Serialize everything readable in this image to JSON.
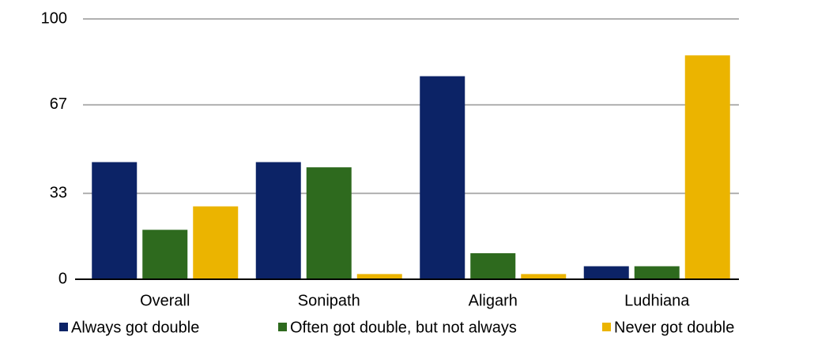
{
  "chart_data": {
    "type": "bar",
    "categories": [
      "Overall",
      "Sonipath",
      "Aligarh",
      "Ludhiana"
    ],
    "series": [
      {
        "name": "Always got double",
        "color": "#0c2366",
        "values": [
          45,
          45,
          78,
          5
        ]
      },
      {
        "name": "Often got double, but not always",
        "color": "#2e6a1e",
        "values": [
          19,
          43,
          10,
          5
        ]
      },
      {
        "name": "Never got double",
        "color": "#ebb400",
        "values": [
          28,
          2,
          2,
          86
        ]
      }
    ],
    "ylim": [
      0,
      100
    ],
    "yticks": [
      0,
      33,
      67,
      100
    ],
    "grid": true
  }
}
